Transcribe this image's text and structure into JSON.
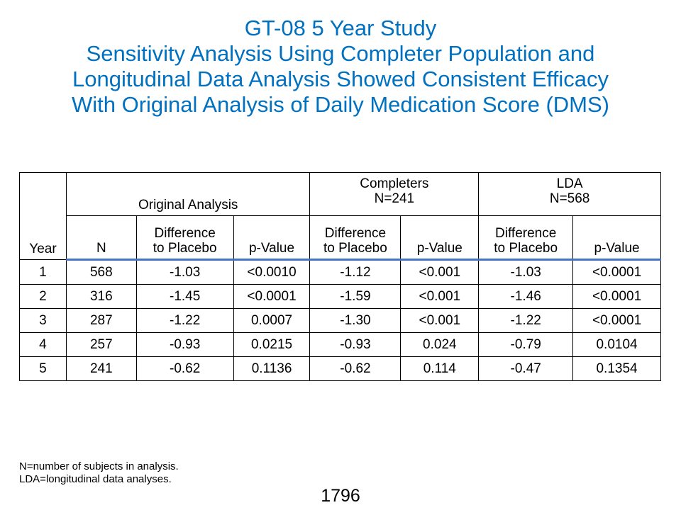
{
  "title": {
    "line1": "GT-08 5 Year Study",
    "line2": "Sensitivity Analysis Using Completer Population and",
    "line3": "Longitudinal Data Analysis Showed Consistent Efficacy",
    "line4": "With Original Analysis of Daily Medication Score (DMS)"
  },
  "table": {
    "groups": {
      "original": "Original Analysis",
      "completers_line1": "Completers",
      "completers_line2": "N=241",
      "lda_line1": "LDA",
      "lda_line2": "N=568"
    },
    "columns": {
      "year": "Year",
      "n": "N",
      "diff_line1": "Difference",
      "diff_line2": "to Placebo",
      "pvalue": "p-Value"
    },
    "rows": [
      {
        "year": "1",
        "n": "568",
        "orig_diff": "-1.03",
        "orig_p": "<0.0010",
        "comp_diff": "-1.12",
        "comp_p": "<0.001",
        "lda_diff": "-1.03",
        "lda_p": "<0.0001"
      },
      {
        "year": "2",
        "n": "316",
        "orig_diff": "-1.45",
        "orig_p": "<0.0001",
        "comp_diff": "-1.59",
        "comp_p": "<0.001",
        "lda_diff": "-1.46",
        "lda_p": "<0.0001"
      },
      {
        "year": "3",
        "n": "287",
        "orig_diff": "-1.22",
        "orig_p": "0.0007",
        "comp_diff": "-1.30",
        "comp_p": "<0.001",
        "lda_diff": "-1.22",
        "lda_p": "<0.0001"
      },
      {
        "year": "4",
        "n": "257",
        "orig_diff": "-0.93",
        "orig_p": "0.0215",
        "comp_diff": "-0.93",
        "comp_p": "0.024",
        "lda_diff": "-0.79",
        "lda_p": "0.0104"
      },
      {
        "year": "5",
        "n": "241",
        "orig_diff": "-0.62",
        "orig_p": "0.1136",
        "comp_diff": "-0.62",
        "comp_p": "0.114",
        "lda_diff": "-0.47",
        "lda_p": "0.1354"
      }
    ]
  },
  "footnotes": {
    "line1": "N=number of subjects in analysis.",
    "line2": "LDA=longitudinal data analyses."
  },
  "page_number": "1796",
  "colors": {
    "title": "#0070C0",
    "header_rule": "#4472C4"
  }
}
